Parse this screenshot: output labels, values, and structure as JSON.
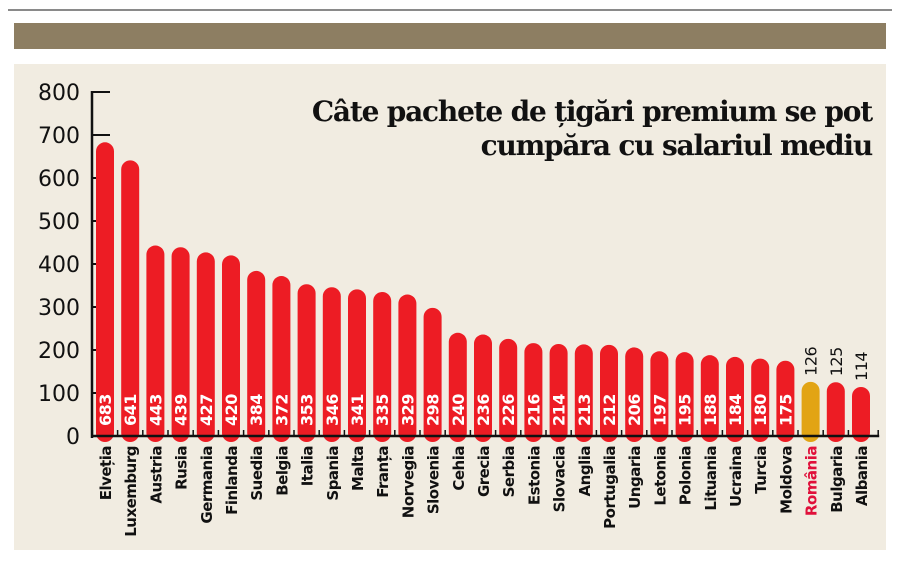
{
  "chart_data": {
    "type": "bar",
    "title": "Câte pachete de țigări premium se pot cumpăra cu salariul mediu",
    "title_lines": [
      "Câte pachete de țigări premium se pot",
      "cumpăra cu salariul mediu"
    ],
    "xlabel": "",
    "ylabel": "",
    "ylim": [
      0,
      800
    ],
    "yticks": [
      0,
      100,
      200,
      300,
      400,
      500,
      600,
      700,
      800
    ],
    "grid": false,
    "legend": "none",
    "categories": [
      "Elveția",
      "Luxemburg",
      "Austria",
      "Rusia",
      "Germania",
      "Finlanda",
      "Suedia",
      "Belgia",
      "Italia",
      "Spania",
      "Malta",
      "Franța",
      "Norvegia",
      "Slovenia",
      "Cehia",
      "Grecia",
      "Serbia",
      "Estonia",
      "Slovacia",
      "Anglia",
      "Portugalia",
      "Ungaria",
      "Letonia",
      "Polonia",
      "Lituania",
      "Ucraina",
      "Turcia",
      "Moldova",
      "România",
      "Bulgaria",
      "Albania"
    ],
    "values": [
      683,
      641,
      443,
      439,
      427,
      420,
      384,
      372,
      353,
      346,
      341,
      335,
      329,
      298,
      240,
      236,
      226,
      216,
      214,
      213,
      212,
      206,
      197,
      195,
      188,
      184,
      180,
      175,
      126,
      125,
      114
    ],
    "highlight": "România",
    "colors": {
      "bar": "#ed1c24",
      "highlight_bar": "#e2a414",
      "highlight_label": "#e0103a",
      "axis": "#111111",
      "label_inside": "#ffffff",
      "label_outside": "#111111"
    },
    "labels_outside_below": 130
  }
}
